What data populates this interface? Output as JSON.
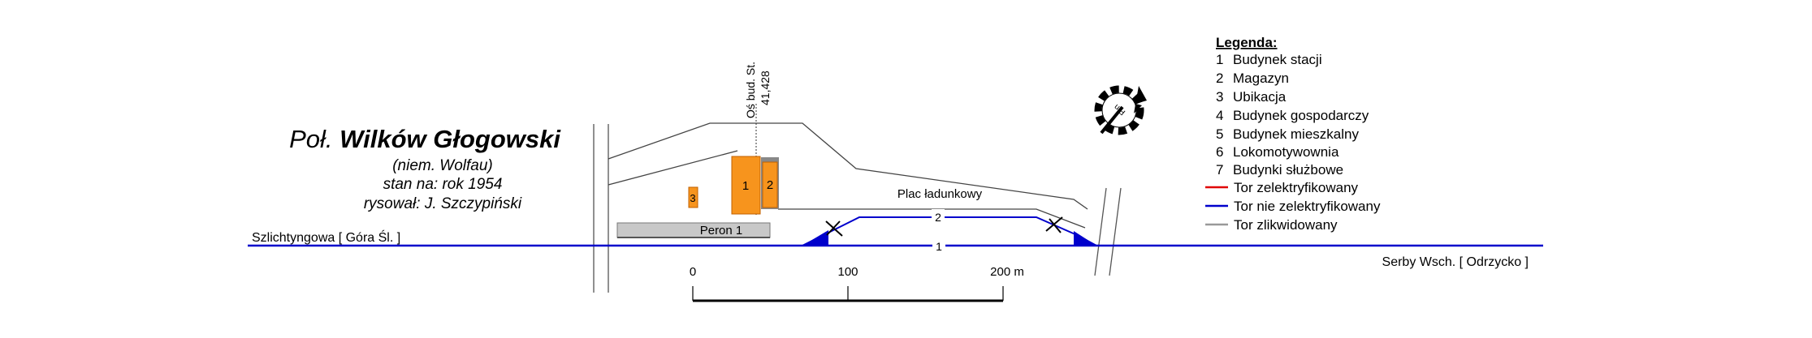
{
  "title": {
    "prefix": "Poł.",
    "name": "Wilków Głogowski",
    "german": "(niem. Wolfau)",
    "state": "stan na: rok 1954",
    "author": "rysował: J. Szczypiński"
  },
  "legend": {
    "heading": "Legenda:",
    "buildings": [
      {
        "num": "1",
        "label": "Budynek stacji"
      },
      {
        "num": "2",
        "label": "Magazyn"
      },
      {
        "num": "3",
        "label": "Ubikacja"
      },
      {
        "num": "4",
        "label": "Budynek gospodarczy"
      },
      {
        "num": "5",
        "label": "Budynek mieszkalny"
      },
      {
        "num": "6",
        "label": "Lokomotywownia"
      },
      {
        "num": "7",
        "label": "Budynki służbowe"
      }
    ],
    "tracks": [
      {
        "label": "Tor zelektryfikowany",
        "color": "#e00000"
      },
      {
        "label": "Tor nie zelektryfikowany",
        "color": "#0000cc"
      },
      {
        "label": "Tor zlikwidowany",
        "color": "#999999"
      }
    ]
  },
  "map": {
    "axis_label": "Oś bud. St.",
    "axis_km": "41,428",
    "cargo_yard": "Plac ładunkowy",
    "platform": "Peron 1",
    "track1": "1",
    "track2": "2",
    "building1": "1",
    "building2": "2",
    "building3": "3",
    "dir_west": "Szlichtyngowa [ Góra Śl. ]",
    "dir_east": "Serby Wsch. [ Odrzycko ]",
    "compass_label": "Płn",
    "building_color": "#f7941d",
    "track_color": "#0000cc"
  },
  "scale": {
    "labels": [
      "0",
      "100",
      "200 m"
    ]
  }
}
